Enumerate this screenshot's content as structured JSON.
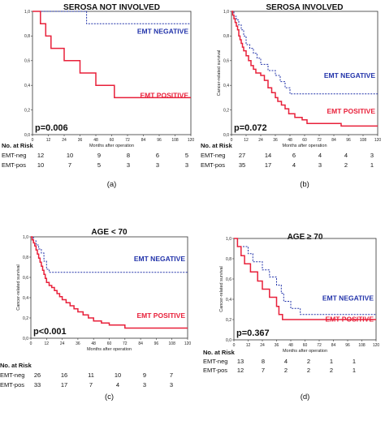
{
  "chart_data": [
    {
      "type": "line",
      "title": "SEROSA NOT INVOLVED",
      "caption": "(a)",
      "xlabel": "Months after operation",
      "ylabel": "",
      "x_ticks": [
        "0",
        "12",
        "24",
        "36",
        "48",
        "60",
        "72",
        "84",
        "96",
        "108",
        "120"
      ],
      "y_ticks": [
        "0,0",
        "0,2",
        "0,4",
        "0,6",
        "0,8",
        "1,0"
      ],
      "xlim": [
        0,
        120
      ],
      "ylim": [
        0,
        1
      ],
      "p_value": "p=0.006",
      "series": [
        {
          "name": "EMT NEGATIVE",
          "color": "#2233aa",
          "dashed": true,
          "steps": [
            [
              0,
              1
            ],
            [
              41,
              1
            ],
            [
              41,
              0.9
            ],
            [
              120,
              0.9
            ]
          ]
        },
        {
          "name": "EMT POSITIVE",
          "color": "#e8203a",
          "dashed": false,
          "steps": [
            [
              0,
              1
            ],
            [
              6,
              1
            ],
            [
              6,
              0.9
            ],
            [
              10,
              0.9
            ],
            [
              10,
              0.8
            ],
            [
              14,
              0.8
            ],
            [
              14,
              0.7
            ],
            [
              24,
              0.7
            ],
            [
              24,
              0.6
            ],
            [
              36,
              0.6
            ],
            [
              36,
              0.5
            ],
            [
              48,
              0.5
            ],
            [
              48,
              0.4
            ],
            [
              62,
              0.4
            ],
            [
              62,
              0.3
            ],
            [
              120,
              0.3
            ]
          ]
        }
      ],
      "risk_table": {
        "header": "No. at Risk",
        "rows": [
          {
            "label": "EMT-neg",
            "values": [
              "12",
              "10",
              "9",
              "8",
              "6",
              "5"
            ]
          },
          {
            "label": "EMT-pos",
            "values": [
              "10",
              "7",
              "5",
              "3",
              "3",
              "3"
            ]
          }
        ]
      }
    },
    {
      "type": "line",
      "title": "SEROSA INVOLVED",
      "caption": "(b)",
      "xlabel": "Months after operation",
      "ylabel": "Cancer-related survival",
      "x_ticks": [
        "0",
        "12",
        "24",
        "36",
        "48",
        "60",
        "72",
        "84",
        "96",
        "108",
        "120"
      ],
      "y_ticks": [
        "0,0",
        "0,2",
        "0,4",
        "0,6",
        "0,8",
        "1,0"
      ],
      "xlim": [
        0,
        120
      ],
      "ylim": [
        0,
        1
      ],
      "p_value": "p=0.072",
      "series": [
        {
          "name": "EMT NEGATIVE",
          "color": "#2233aa",
          "dashed": true,
          "steps": [
            [
              0,
              1
            ],
            [
              2,
              1
            ],
            [
              2,
              0.96
            ],
            [
              4,
              0.93
            ],
            [
              6,
              0.89
            ],
            [
              8,
              0.85
            ],
            [
              10,
              0.8
            ],
            [
              12,
              0.73
            ],
            [
              15,
              0.7
            ],
            [
              18,
              0.66
            ],
            [
              21,
              0.62
            ],
            [
              24,
              0.57
            ],
            [
              30,
              0.52
            ],
            [
              36,
              0.48
            ],
            [
              40,
              0.43
            ],
            [
              44,
              0.38
            ],
            [
              48,
              0.33
            ],
            [
              120,
              0.33
            ]
          ]
        },
        {
          "name": "EMT POSITIVE",
          "color": "#e8203a",
          "dashed": false,
          "steps": [
            [
              0,
              1
            ],
            [
              1,
              0.97
            ],
            [
              2,
              0.94
            ],
            [
              3,
              0.91
            ],
            [
              4,
              0.88
            ],
            [
              5,
              0.85
            ],
            [
              6,
              0.8
            ],
            [
              7,
              0.77
            ],
            [
              8,
              0.74
            ],
            [
              9,
              0.71
            ],
            [
              10,
              0.68
            ],
            [
              12,
              0.64
            ],
            [
              14,
              0.6
            ],
            [
              16,
              0.56
            ],
            [
              18,
              0.53
            ],
            [
              20,
              0.5
            ],
            [
              24,
              0.48
            ],
            [
              27,
              0.44
            ],
            [
              30,
              0.38
            ],
            [
              33,
              0.34
            ],
            [
              36,
              0.3
            ],
            [
              38,
              0.27
            ],
            [
              41,
              0.24
            ],
            [
              44,
              0.21
            ],
            [
              47,
              0.17
            ],
            [
              52,
              0.14
            ],
            [
              58,
              0.12
            ],
            [
              62,
              0.09
            ],
            [
              90,
              0.07
            ],
            [
              120,
              0.07
            ]
          ]
        }
      ],
      "risk_table": {
        "header": "No. at Risk",
        "rows": [
          {
            "label": "EMT-neg",
            "values": [
              "27",
              "14",
              "6",
              "4",
              "4",
              "3"
            ]
          },
          {
            "label": "EMT-pos",
            "values": [
              "35",
              "17",
              "4",
              "3",
              "2",
              "1"
            ]
          }
        ]
      }
    },
    {
      "type": "line",
      "title": "AGE < 70",
      "caption": "(c)",
      "xlabel": "Months after operation",
      "ylabel": "Cancer-related survival",
      "x_ticks": [
        "0",
        "12",
        "24",
        "36",
        "48",
        "60",
        "72",
        "84",
        "96",
        "108",
        "120"
      ],
      "y_ticks": [
        "0,0",
        "0,2",
        "0,4",
        "0,6",
        "0,8",
        "1,0"
      ],
      "xlim": [
        0,
        120
      ],
      "ylim": [
        0,
        1
      ],
      "p_value": "p<0.001",
      "series": [
        {
          "name": "EMT NEGATIVE",
          "color": "#2233aa",
          "dashed": true,
          "steps": [
            [
              0,
              1
            ],
            [
              2,
              0.96
            ],
            [
              4,
              0.92
            ],
            [
              6,
              0.88
            ],
            [
              8,
              0.84
            ],
            [
              10,
              0.76
            ],
            [
              12,
              0.68
            ],
            [
              14,
              0.65
            ],
            [
              120,
              0.65
            ]
          ]
        },
        {
          "name": "EMT POSITIVE",
          "color": "#e8203a",
          "dashed": false,
          "steps": [
            [
              0,
              1
            ],
            [
              1,
              0.97
            ],
            [
              2,
              0.94
            ],
            [
              3,
              0.91
            ],
            [
              4,
              0.87
            ],
            [
              5,
              0.83
            ],
            [
              6,
              0.79
            ],
            [
              7,
              0.75
            ],
            [
              8,
              0.71
            ],
            [
              9,
              0.67
            ],
            [
              10,
              0.63
            ],
            [
              11,
              0.59
            ],
            [
              12,
              0.55
            ],
            [
              14,
              0.52
            ],
            [
              16,
              0.5
            ],
            [
              18,
              0.47
            ],
            [
              20,
              0.44
            ],
            [
              22,
              0.41
            ],
            [
              24,
              0.38
            ],
            [
              27,
              0.35
            ],
            [
              30,
              0.32
            ],
            [
              33,
              0.29
            ],
            [
              36,
              0.26
            ],
            [
              40,
              0.23
            ],
            [
              44,
              0.2
            ],
            [
              48,
              0.17
            ],
            [
              54,
              0.15
            ],
            [
              60,
              0.13
            ],
            [
              72,
              0.1
            ],
            [
              120,
              0.1
            ]
          ]
        }
      ],
      "risk_table": {
        "header": "No. at Risk",
        "rows": [
          {
            "label": "EMT-neg",
            "values": [
              "26",
              "16",
              "11",
              "10",
              "9",
              "7"
            ]
          },
          {
            "label": "EMT-pos",
            "values": [
              "33",
              "17",
              "7",
              "4",
              "3",
              "3"
            ]
          }
        ]
      }
    },
    {
      "type": "line",
      "title": "AGE ≥ 70",
      "caption": "(d)",
      "xlabel": "Months after operation",
      "ylabel": "Cancer-related survival",
      "x_ticks": [
        "0",
        "12",
        "24",
        "36",
        "48",
        "60",
        "72",
        "84",
        "96",
        "108",
        "120"
      ],
      "y_ticks": [
        "0,0",
        "0,2",
        "0,4",
        "0,6",
        "0,8",
        "1,0"
      ],
      "xlim": [
        0,
        120
      ],
      "ylim": [
        0,
        1
      ],
      "p_value": "p=0.367",
      "series": [
        {
          "name": "EMT NEGATIVE",
          "color": "#2233aa",
          "dashed": true,
          "steps": [
            [
              0,
              1
            ],
            [
              3,
              1
            ],
            [
              3,
              0.92
            ],
            [
              12,
              0.92
            ],
            [
              12,
              0.85
            ],
            [
              16,
              0.85
            ],
            [
              16,
              0.77
            ],
            [
              24,
              0.77
            ],
            [
              24,
              0.69
            ],
            [
              30,
              0.69
            ],
            [
              30,
              0.62
            ],
            [
              36,
              0.62
            ],
            [
              36,
              0.54
            ],
            [
              40,
              0.54
            ],
            [
              40,
              0.46
            ],
            [
              42,
              0.46
            ],
            [
              42,
              0.38
            ],
            [
              48,
              0.38
            ],
            [
              48,
              0.31
            ],
            [
              56,
              0.31
            ],
            [
              56,
              0.25
            ],
            [
              120,
              0.25
            ]
          ]
        },
        {
          "name": "EMT POSITIVE",
          "color": "#e8203a",
          "dashed": false,
          "steps": [
            [
              0,
              1
            ],
            [
              3,
              1
            ],
            [
              3,
              0.92
            ],
            [
              6,
              0.92
            ],
            [
              6,
              0.83
            ],
            [
              9,
              0.83
            ],
            [
              9,
              0.75
            ],
            [
              14,
              0.75
            ],
            [
              14,
              0.67
            ],
            [
              20,
              0.67
            ],
            [
              20,
              0.58
            ],
            [
              24,
              0.58
            ],
            [
              24,
              0.5
            ],
            [
              30,
              0.5
            ],
            [
              30,
              0.42
            ],
            [
              36,
              0.42
            ],
            [
              36,
              0.33
            ],
            [
              38,
              0.33
            ],
            [
              38,
              0.25
            ],
            [
              41,
              0.25
            ],
            [
              41,
              0.2
            ],
            [
              120,
              0.2
            ]
          ]
        }
      ],
      "risk_table": {
        "header": "No. at Risk",
        "rows": [
          {
            "label": "EMT-neg",
            "values": [
              "13",
              "8",
              "4",
              "2",
              "1",
              "1"
            ]
          },
          {
            "label": "EMT-pos",
            "values": [
              "12",
              "7",
              "2",
              "2",
              "2",
              "1"
            ]
          }
        ]
      }
    }
  ]
}
